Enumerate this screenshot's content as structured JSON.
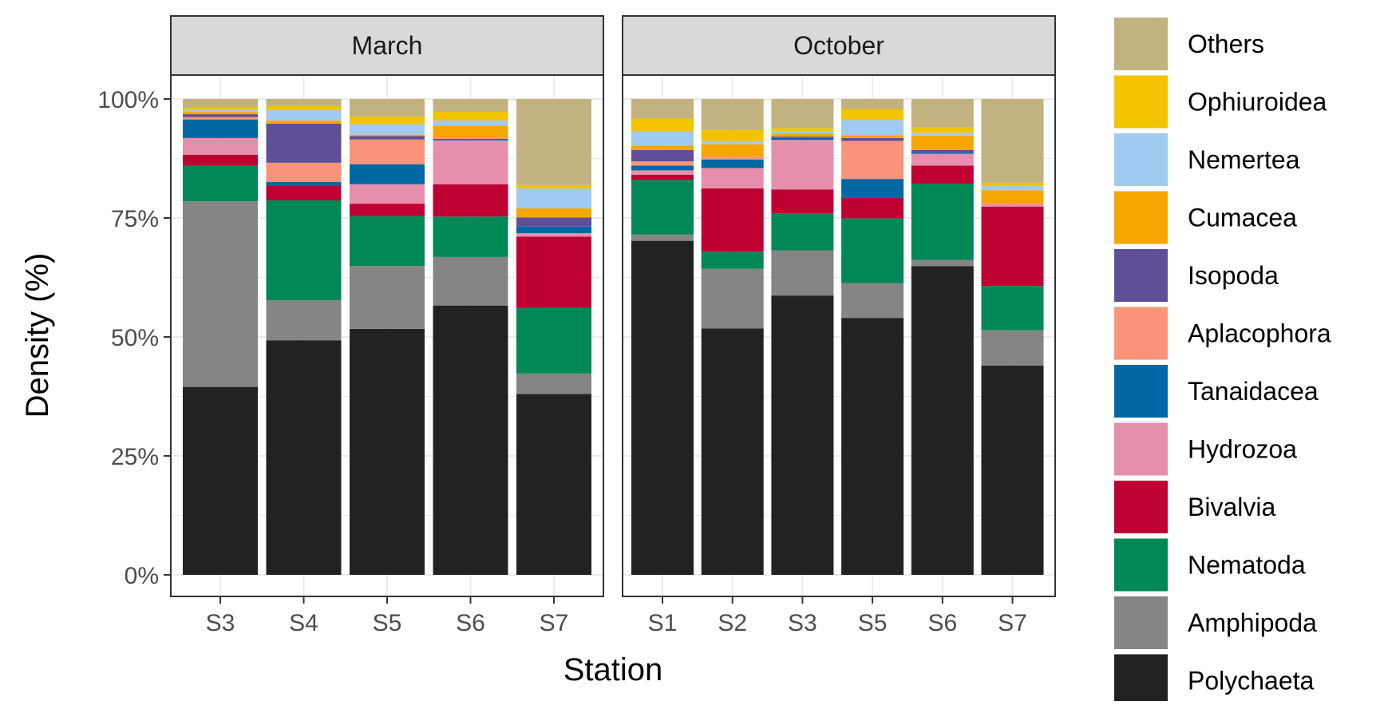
{
  "chart_data": {
    "type": "bar",
    "stacked": true,
    "xlabel": "Station",
    "ylabel": "Density (%)",
    "ylim": [
      0,
      100
    ],
    "yticks": [
      "0%",
      "25%",
      "50%",
      "75%",
      "100%"
    ],
    "grid": true,
    "legend_position": "right",
    "taxa": [
      "Polychaeta",
      "Amphipoda",
      "Nematoda",
      "Bivalvia",
      "Hydrozoa",
      "Tanaidacea",
      "Aplacophora",
      "Isopoda",
      "Cumacea",
      "Nemertea",
      "Ophiuroidea",
      "Others"
    ],
    "legend_order": [
      "Others",
      "Ophiuroidea",
      "Nemertea",
      "Cumacea",
      "Isopoda",
      "Aplacophora",
      "Tanaidacea",
      "Hydrozoa",
      "Bivalvia",
      "Nematoda",
      "Amphipoda",
      "Polychaeta"
    ],
    "colors": {
      "Polychaeta": "#222222",
      "Amphipoda": "#858585",
      "Nematoda": "#008856",
      "Bivalvia": "#BE0032",
      "Hydrozoa": "#E68FAC",
      "Tanaidacea": "#0067A5",
      "Aplacophora": "#F99379",
      "Isopoda": "#604E97",
      "Cumacea": "#F6A600",
      "Nemertea": "#A1CAF1",
      "Ophiuroidea": "#F3C300",
      "Others": "#C2B280"
    },
    "panels": [
      {
        "title": "March",
        "categories": [
          "S3",
          "S4",
          "S5",
          "S6",
          "S7"
        ],
        "values": {
          "Polychaeta": [
            39.5,
            49.3,
            51.7,
            56.6,
            38.0
          ],
          "Amphipoda": [
            39.0,
            8.4,
            13.2,
            10.2,
            4.3
          ],
          "Nematoda": [
            7.5,
            21.0,
            10.5,
            8.5,
            13.8
          ],
          "Bivalvia": [
            2.3,
            3.1,
            2.6,
            6.8,
            15.0
          ],
          "Hydrozoa": [
            3.5,
            0,
            4.1,
            9.2,
            0.7
          ],
          "Tanaidacea": [
            3.9,
            0.8,
            4.2,
            0.3,
            1.4
          ],
          "Aplacophora": [
            0.5,
            4.0,
            5.2,
            0.2,
            0
          ],
          "Isopoda": [
            0.6,
            8.2,
            0.7,
            0,
            1.9
          ],
          "Cumacea": [
            0.5,
            0.7,
            0.3,
            2.6,
            1.9
          ],
          "Nemertea": [
            0.4,
            2.2,
            2.2,
            1.1,
            4.2
          ],
          "Ophiuroidea": [
            0.5,
            0.8,
            1.6,
            1.8,
            0.7
          ],
          "Others": [
            1.8,
            1.5,
            3.7,
            2.7,
            18.1
          ]
        }
      },
      {
        "title": "October",
        "categories": [
          "S1",
          "S2",
          "S3",
          "S5",
          "S6",
          "S7"
        ],
        "values": {
          "Polychaeta": [
            70.2,
            51.8,
            58.7,
            54.0,
            64.9,
            44.0
          ],
          "Amphipoda": [
            1.3,
            12.5,
            9.5,
            7.3,
            1.3,
            7.4
          ],
          "Nematoda": [
            11.5,
            3.6,
            7.8,
            13.6,
            16.0,
            9.3
          ],
          "Bivalvia": [
            1.1,
            13.3,
            5.0,
            4.3,
            3.8,
            16.7
          ],
          "Hydrozoa": [
            0.9,
            4.3,
            10.4,
            0,
            2.5,
            0.6
          ],
          "Tanaidacea": [
            1.0,
            1.8,
            0.4,
            4.0,
            0.3,
            0
          ],
          "Aplacophora": [
            0.9,
            0.6,
            0,
            8.0,
            0,
            0
          ],
          "Isopoda": [
            2.4,
            0,
            0.3,
            0.6,
            0.5,
            0
          ],
          "Cumacea": [
            0.9,
            2.6,
            0.6,
            0.6,
            3.0,
            2.8
          ],
          "Nemertea": [
            3.0,
            0.6,
            0.6,
            3.2,
            0.6,
            0.9
          ],
          "Ophiuroidea": [
            2.7,
            2.4,
            0.6,
            2.3,
            1.1,
            0.7
          ],
          "Others": [
            4.1,
            6.5,
            6.1,
            2.1,
            6.0,
            17.6
          ]
        }
      }
    ]
  }
}
